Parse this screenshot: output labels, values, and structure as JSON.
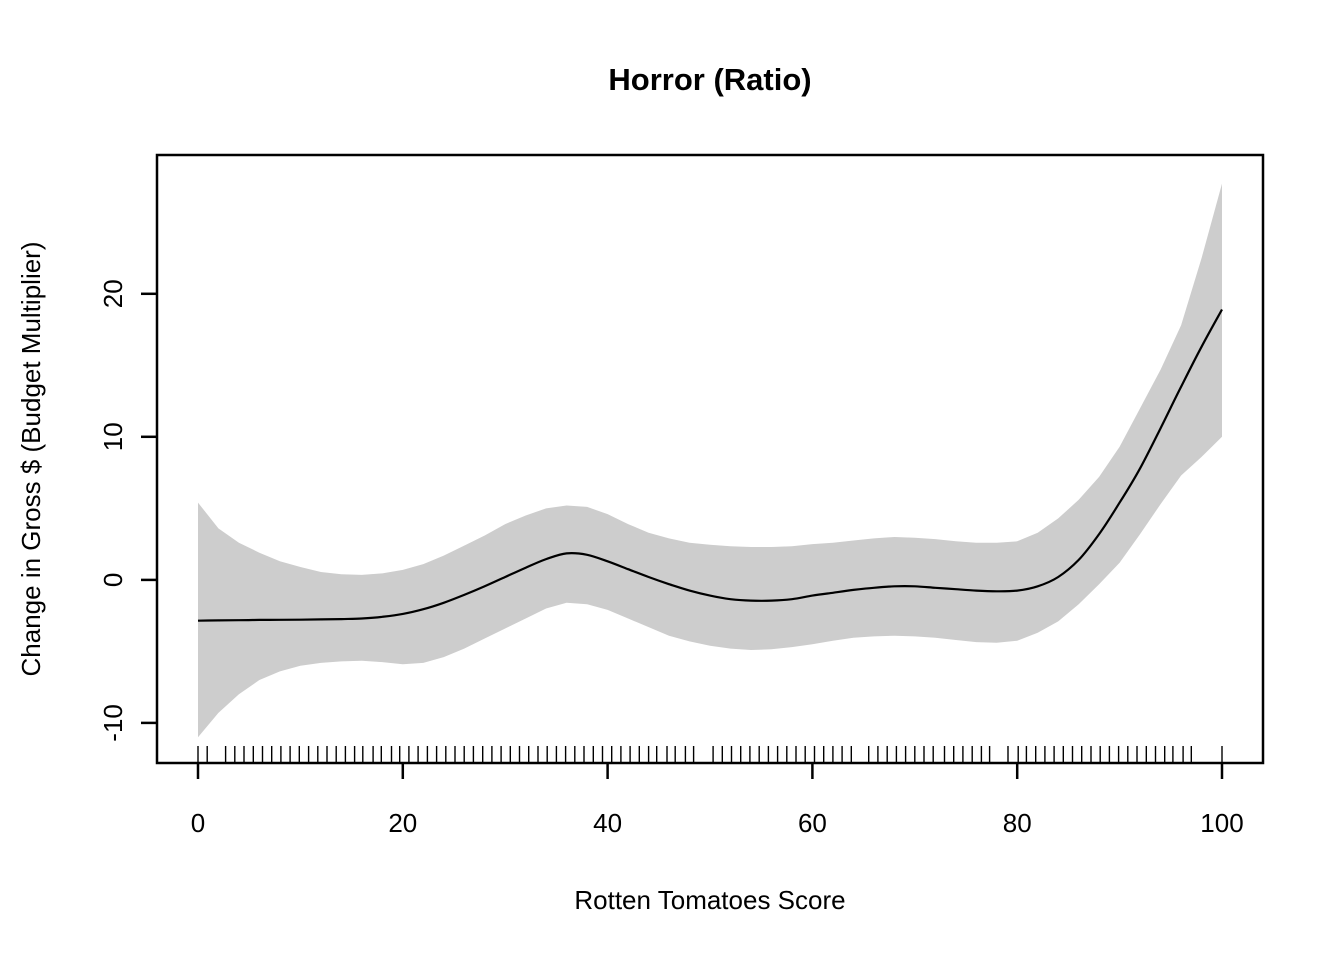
{
  "chart_data": {
    "type": "line",
    "title": "Horror (Ratio)",
    "xlabel": "Rotten Tomatoes Score",
    "ylabel": "Change in Gross $ (Budget Multiplier)",
    "x_ticks": [
      0,
      20,
      40,
      60,
      80,
      100
    ],
    "y_ticks": [
      -10,
      0,
      10,
      20
    ],
    "xlim": [
      -4.0,
      104.0
    ],
    "ylim": [
      -12.8,
      29.7
    ],
    "grid": false,
    "legend_position": "none",
    "band_color": "#CDCDCD",
    "line_color": "#000000",
    "background_color": "#FFFFFF",
    "x": [
      0,
      2,
      4,
      6,
      8,
      10,
      12,
      14,
      16,
      18,
      20,
      22,
      24,
      26,
      28,
      30,
      32,
      34,
      36,
      38,
      40,
      42,
      44,
      46,
      48,
      50,
      52,
      54,
      56,
      58,
      60,
      62,
      64,
      66,
      68,
      70,
      72,
      74,
      76,
      78,
      80,
      82,
      84,
      86,
      88,
      90,
      92,
      94,
      96,
      98,
      100
    ],
    "series": [
      {
        "name": "smooth_fit",
        "values": [
          -2.85,
          -2.83,
          -2.82,
          -2.8,
          -2.79,
          -2.78,
          -2.76,
          -2.74,
          -2.7,
          -2.58,
          -2.38,
          -2.05,
          -1.6,
          -1.05,
          -0.45,
          0.2,
          0.85,
          1.45,
          1.85,
          1.75,
          1.3,
          0.75,
          0.2,
          -0.3,
          -0.75,
          -1.1,
          -1.35,
          -1.45,
          -1.45,
          -1.35,
          -1.1,
          -0.9,
          -0.7,
          -0.55,
          -0.45,
          -0.45,
          -0.55,
          -0.65,
          -0.75,
          -0.8,
          -0.75,
          -0.45,
          0.2,
          1.4,
          3.2,
          5.4,
          7.8,
          10.6,
          13.5,
          16.3,
          18.9
        ]
      },
      {
        "name": "ci_upper",
        "values": [
          5.4,
          3.6,
          2.6,
          1.9,
          1.3,
          0.9,
          0.55,
          0.4,
          0.35,
          0.45,
          0.7,
          1.1,
          1.7,
          2.4,
          3.1,
          3.9,
          4.5,
          5.0,
          5.2,
          5.1,
          4.6,
          3.9,
          3.3,
          2.9,
          2.6,
          2.45,
          2.35,
          2.3,
          2.3,
          2.35,
          2.5,
          2.6,
          2.75,
          2.9,
          3.0,
          2.95,
          2.85,
          2.7,
          2.6,
          2.6,
          2.7,
          3.3,
          4.3,
          5.6,
          7.2,
          9.3,
          12.0,
          14.7,
          17.8,
          22.5,
          27.7
        ]
      },
      {
        "name": "ci_lower",
        "values": [
          -11.0,
          -9.3,
          -8.0,
          -7.0,
          -6.4,
          -6.0,
          -5.8,
          -5.7,
          -5.65,
          -5.75,
          -5.9,
          -5.8,
          -5.4,
          -4.8,
          -4.1,
          -3.4,
          -2.7,
          -2.0,
          -1.6,
          -1.7,
          -2.1,
          -2.7,
          -3.3,
          -3.9,
          -4.3,
          -4.6,
          -4.8,
          -4.9,
          -4.85,
          -4.7,
          -4.5,
          -4.25,
          -4.05,
          -3.95,
          -3.9,
          -3.95,
          -4.05,
          -4.2,
          -4.35,
          -4.4,
          -4.25,
          -3.7,
          -2.9,
          -1.7,
          -0.3,
          1.2,
          3.2,
          5.3,
          7.3,
          8.6,
          10.0
        ]
      }
    ],
    "rug_x": [
      0,
      0.9,
      2.7,
      3.6,
      4.5,
      5.4,
      6.3,
      7.2,
      8.1,
      9.0,
      9.9,
      10.8,
      11.7,
      12.6,
      13.5,
      14.4,
      15.3,
      16.1,
      17.1,
      17.9,
      18.9,
      19.7,
      20.6,
      21.5,
      22.4,
      23.3,
      24.2,
      25.1,
      26.0,
      26.9,
      27.8,
      28.7,
      29.6,
      30.5,
      31.4,
      32.3,
      33.2,
      34.1,
      35.0,
      35.9,
      36.8,
      37.7,
      38.6,
      39.5,
      40.4,
      41.3,
      42.2,
      43.1,
      44.0,
      44.8,
      45.8,
      46.6,
      47.6,
      48.4,
      50.3,
      51.2,
      52.1,
      53.0,
      53.9,
      54.8,
      55.7,
      56.6,
      57.5,
      58.4,
      59.3,
      60.2,
      61.1,
      62.0,
      62.9,
      63.8,
      65.5,
      66.4,
      67.3,
      68.2,
      69.1,
      70.0,
      70.9,
      71.8,
      72.9,
      73.8,
      74.7,
      75.6,
      76.5,
      77.3,
      79.1,
      80.1,
      80.9,
      81.8,
      82.7,
      83.6,
      84.5,
      85.4,
      86.3,
      87.2,
      88.1,
      89.0,
      89.9,
      90.8,
      91.7,
      92.6,
      93.5,
      94.4,
      95.2,
      96.2,
      97.0,
      100.0
    ]
  }
}
